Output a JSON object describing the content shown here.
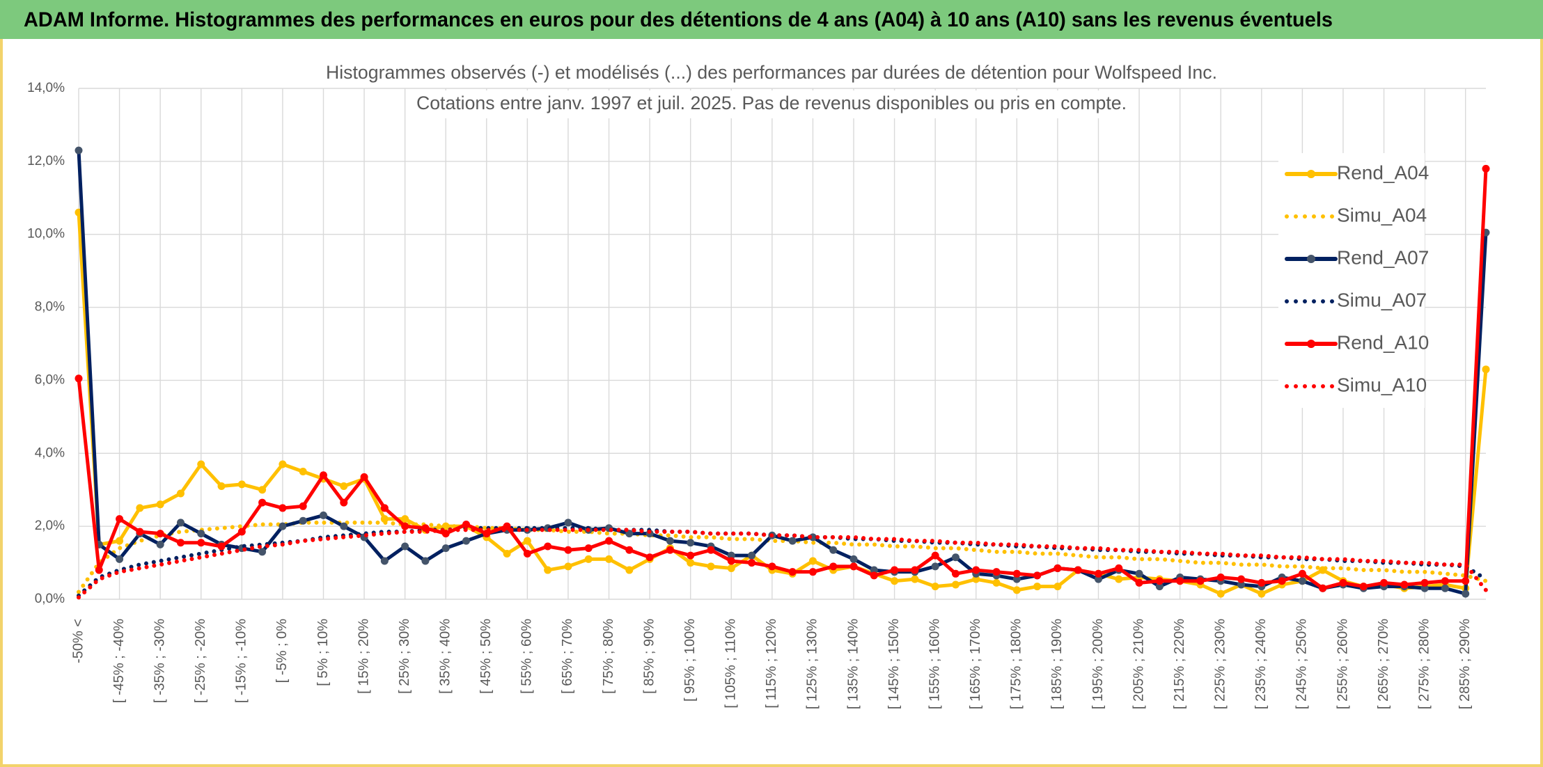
{
  "banner": "ADAM Informe. Histogrammes des performances en euros pour des détentions de 4 ans (A04) à 10 ans (A10) sans les revenus éventuels",
  "chart_data": {
    "type": "line",
    "title": "Histogrammes observés (-) et modélisés (...) des performances par durées de détention pour Wolfspeed Inc.",
    "subtitle": "Cotations entre janv. 1997 et juil. 2025. Pas de revenus disponibles ou pris en compte.",
    "categories": [
      "-50% <",
      null,
      "[ -45% ; -40%",
      null,
      "[ -35% ; -30%",
      null,
      "[ -25% ; -20%",
      null,
      "[ -15% ; -10%",
      null,
      "[ -5% ; 0%",
      null,
      "[ 5% ; 10%",
      null,
      "[ 15% ; 20%",
      null,
      "[ 25% ; 30%",
      null,
      "[ 35% ; 40%",
      null,
      "[ 45% ; 50%",
      null,
      "[ 55% ; 60%",
      null,
      "[ 65% ; 70%",
      null,
      "[ 75% ; 80%",
      null,
      "[ 85% ; 90%",
      null,
      "[ 95% ; 100%",
      null,
      "[ 105% ; 110%",
      null,
      "[ 115% ; 120%",
      null,
      "[ 125% ; 130%",
      null,
      "[ 135% ; 140%",
      null,
      "[ 145% ; 150%",
      null,
      "[ 155% ; 160%",
      null,
      "[ 165% ; 170%",
      null,
      "[ 175% ; 180%",
      null,
      "[ 185% ; 190%",
      null,
      "[ 195% ; 200%",
      null,
      "[ 205% ; 210%",
      null,
      "[ 215% ; 220%",
      null,
      "[ 225% ; 230%",
      null,
      "[ 235% ; 240%",
      null,
      "[ 245% ; 250%",
      null,
      "[ 255% ; 260%",
      null,
      "[ 265% ; 270%",
      null,
      "[ 275% ; 280%",
      null,
      "[ 285% ; 290%",
      null
    ],
    "series": [
      {
        "name": "Rend_A04",
        "color": "#FFC000",
        "style": "solid",
        "markers": true,
        "values": [
          10.6,
          1.5,
          1.6,
          2.5,
          2.6,
          2.9,
          3.7,
          3.1,
          3.15,
          3.0,
          3.7,
          3.5,
          3.3,
          3.1,
          3.3,
          2.2,
          2.2,
          1.9,
          2.0,
          2.0,
          1.7,
          1.25,
          1.6,
          0.8,
          0.9,
          1.1,
          1.1,
          0.8,
          1.1,
          1.4,
          1.0,
          0.9,
          0.85,
          1.2,
          0.8,
          0.7,
          1.05,
          0.8,
          0.9,
          0.7,
          0.5,
          0.55,
          0.35,
          0.4,
          0.55,
          0.45,
          0.25,
          0.35,
          0.35,
          0.8,
          0.7,
          0.55,
          0.6,
          0.55,
          0.5,
          0.4,
          0.15,
          0.4,
          0.15,
          0.4,
          0.5,
          0.8,
          0.5,
          0.35,
          0.4,
          0.3,
          0.35,
          0.4,
          0.3,
          6.3
        ]
      },
      {
        "name": "Simu_A04",
        "color": "#FFC000",
        "style": "dotted",
        "markers": false,
        "values": [
          0.2,
          1.0,
          1.4,
          1.6,
          1.75,
          1.85,
          1.9,
          1.95,
          2.0,
          2.05,
          2.05,
          2.1,
          2.1,
          2.1,
          2.1,
          2.1,
          2.05,
          2.05,
          2.0,
          2.0,
          1.95,
          1.95,
          1.9,
          1.9,
          1.85,
          1.85,
          1.8,
          1.8,
          1.75,
          1.75,
          1.7,
          1.7,
          1.65,
          1.65,
          1.6,
          1.6,
          1.55,
          1.55,
          1.5,
          1.5,
          1.45,
          1.45,
          1.4,
          1.4,
          1.35,
          1.3,
          1.3,
          1.25,
          1.25,
          1.2,
          1.15,
          1.15,
          1.1,
          1.1,
          1.05,
          1.0,
          1.0,
          0.95,
          0.95,
          0.9,
          0.9,
          0.85,
          0.85,
          0.8,
          0.8,
          0.75,
          0.75,
          0.7,
          0.65,
          0.5
        ]
      },
      {
        "name": "Rend_A07",
        "color": "#002060",
        "style": "solid",
        "markers": true,
        "values": [
          12.3,
          1.5,
          1.1,
          1.8,
          1.5,
          2.1,
          1.8,
          1.5,
          1.4,
          1.3,
          2.0,
          2.15,
          2.3,
          2.0,
          1.7,
          1.05,
          1.45,
          1.05,
          1.4,
          1.6,
          1.8,
          1.9,
          1.9,
          1.95,
          2.1,
          1.9,
          1.95,
          1.8,
          1.8,
          1.6,
          1.55,
          1.45,
          1.2,
          1.2,
          1.75,
          1.6,
          1.7,
          1.35,
          1.1,
          0.8,
          0.75,
          0.75,
          0.9,
          1.15,
          0.7,
          0.65,
          0.55,
          0.65,
          0.85,
          0.8,
          0.55,
          0.8,
          0.7,
          0.35,
          0.6,
          0.55,
          0.5,
          0.4,
          0.35,
          0.6,
          0.5,
          0.3,
          0.4,
          0.3,
          0.35,
          0.35,
          0.3,
          0.3,
          0.15,
          10.05
        ]
      },
      {
        "name": "Simu_A07",
        "color": "#002060",
        "style": "dotted",
        "markers": false,
        "values": [
          0.1,
          0.6,
          0.8,
          0.95,
          1.05,
          1.15,
          1.25,
          1.35,
          1.45,
          1.5,
          1.55,
          1.6,
          1.7,
          1.75,
          1.8,
          1.85,
          1.85,
          1.9,
          1.9,
          1.95,
          1.95,
          1.95,
          1.95,
          1.95,
          1.95,
          1.95,
          1.9,
          1.9,
          1.9,
          1.85,
          1.85,
          1.8,
          1.8,
          1.8,
          1.75,
          1.75,
          1.7,
          1.7,
          1.65,
          1.65,
          1.6,
          1.6,
          1.55,
          1.55,
          1.5,
          1.5,
          1.45,
          1.45,
          1.4,
          1.4,
          1.35,
          1.35,
          1.3,
          1.3,
          1.25,
          1.25,
          1.2,
          1.2,
          1.15,
          1.15,
          1.1,
          1.1,
          1.05,
          1.05,
          1.0,
          1.0,
          0.95,
          0.95,
          0.9,
          0.55
        ]
      },
      {
        "name": "Rend_A10",
        "color": "#FF0000",
        "style": "solid",
        "markers": true,
        "values": [
          6.05,
          0.8,
          2.2,
          1.85,
          1.8,
          1.55,
          1.55,
          1.45,
          1.85,
          2.65,
          2.5,
          2.55,
          3.4,
          2.65,
          3.35,
          2.5,
          2.0,
          1.95,
          1.8,
          2.05,
          1.8,
          2.0,
          1.25,
          1.45,
          1.35,
          1.4,
          1.6,
          1.35,
          1.15,
          1.35,
          1.2,
          1.35,
          1.05,
          1.0,
          0.9,
          0.75,
          0.75,
          0.9,
          0.9,
          0.65,
          0.8,
          0.8,
          1.2,
          0.7,
          0.8,
          0.75,
          0.7,
          0.65,
          0.85,
          0.8,
          0.7,
          0.85,
          0.45,
          0.5,
          0.5,
          0.5,
          0.6,
          0.55,
          0.45,
          0.5,
          0.7,
          0.3,
          0.45,
          0.35,
          0.45,
          0.4,
          0.45,
          0.5,
          0.5,
          11.8
        ]
      },
      {
        "name": "Simu_A10",
        "color": "#FF0000",
        "style": "dotted",
        "markers": false,
        "values": [
          0.05,
          0.55,
          0.75,
          0.85,
          0.95,
          1.05,
          1.15,
          1.25,
          1.35,
          1.45,
          1.5,
          1.6,
          1.65,
          1.7,
          1.75,
          1.8,
          1.85,
          1.85,
          1.9,
          1.9,
          1.9,
          1.9,
          1.9,
          1.9,
          1.9,
          1.9,
          1.9,
          1.9,
          1.85,
          1.85,
          1.85,
          1.8,
          1.8,
          1.8,
          1.75,
          1.75,
          1.7,
          1.7,
          1.7,
          1.65,
          1.65,
          1.6,
          1.6,
          1.55,
          1.55,
          1.5,
          1.5,
          1.45,
          1.45,
          1.4,
          1.4,
          1.35,
          1.35,
          1.3,
          1.3,
          1.25,
          1.25,
          1.2,
          1.2,
          1.15,
          1.15,
          1.1,
          1.1,
          1.05,
          1.05,
          1.0,
          1.0,
          0.95,
          0.95,
          0.25
        ]
      }
    ],
    "ylim": [
      0,
      14
    ],
    "yticks": [
      {
        "value": 0,
        "label": "0,0%"
      },
      {
        "value": 2,
        "label": "2,0%"
      },
      {
        "value": 4,
        "label": "4,0%"
      },
      {
        "value": 6,
        "label": "6,0%"
      },
      {
        "value": 8,
        "label": "8,0%"
      },
      {
        "value": 10,
        "label": "10,0%"
      },
      {
        "value": 12,
        "label": "12,0%"
      },
      {
        "value": 14,
        "label": "14,0%"
      }
    ],
    "grid": true,
    "legend": "right"
  }
}
